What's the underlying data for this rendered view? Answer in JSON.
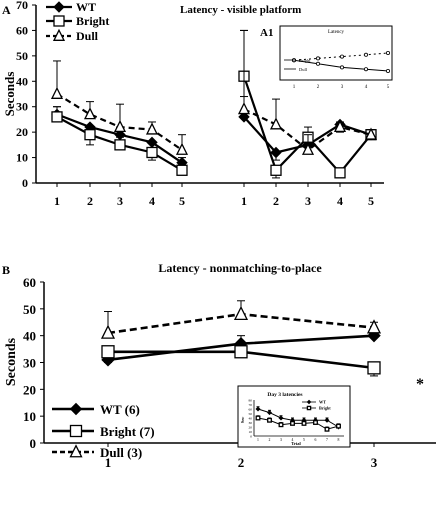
{
  "figure": {
    "panel_a_letter": "A",
    "panel_a1_letter": "A1",
    "panel_b_letter": "B",
    "asterisk": "*"
  },
  "chart_data": [
    {
      "type": "line",
      "title": "Latency - visible platform",
      "ylabel": "Seconds",
      "ylim": [
        0,
        70
      ],
      "yticks": [
        0,
        10,
        20,
        30,
        40,
        50,
        60,
        70
      ],
      "groups": [
        {
          "x": [
            "1",
            "2",
            "3",
            "4",
            "5"
          ]
        },
        {
          "x": [
            "1",
            "2",
            "3",
            "4",
            "5"
          ]
        }
      ],
      "legend": [
        "WT",
        "Bright",
        "Dull"
      ],
      "series": [
        {
          "name": "WT",
          "marker": "diamond",
          "line": "solid",
          "group1": [
            27,
            22,
            19,
            16,
            8
          ],
          "group1_err": [
            3,
            3,
            3,
            3,
            2
          ],
          "group2": [
            26,
            12,
            15,
            23,
            19
          ],
          "group2_err": [
            8,
            3,
            3,
            3,
            2
          ]
        },
        {
          "name": "Bright",
          "marker": "square",
          "line": "solid",
          "group1": [
            26,
            19,
            15,
            12,
            5
          ],
          "group1_err": [
            4,
            4,
            3,
            3,
            2
          ],
          "group2": [
            42,
            5,
            18,
            4,
            19
          ],
          "group2_err": [
            18,
            3,
            4,
            2,
            2
          ]
        },
        {
          "name": "Dull",
          "marker": "triangle",
          "line": "dashed",
          "group1": [
            35,
            27,
            22,
            21,
            13
          ],
          "group1_err": [
            13,
            5,
            9,
            3,
            6
          ],
          "group2": [
            29,
            23,
            13,
            22,
            19
          ],
          "group2_err": [
            31,
            10,
            6,
            2,
            2
          ]
        }
      ]
    },
    {
      "type": "line",
      "title": "Latency",
      "x": [
        "1",
        "2",
        "3",
        "4",
        "5"
      ],
      "series": [
        {
          "name": "Dull",
          "line": "dotted",
          "values": [
            42,
            44,
            46,
            48,
            50
          ]
        },
        {
          "name": "Bright",
          "line": "solid",
          "values": [
            42,
            38,
            34,
            32,
            30
          ]
        }
      ],
      "legend": [
        "Bright",
        "Dull"
      ]
    },
    {
      "type": "line",
      "title": "Latency - nonmatching-to-place",
      "ylabel": "Seconds",
      "ylim": [
        0,
        60
      ],
      "yticks": [
        0,
        10,
        20,
        30,
        40,
        50,
        60
      ],
      "x": [
        "1",
        "2",
        "3"
      ],
      "legend": [
        "WT (6)",
        "Bright (7)",
        "Dull (3)"
      ],
      "series": [
        {
          "name": "WT (6)",
          "marker": "diamond",
          "line": "solid",
          "values": [
            31,
            37,
            40
          ],
          "err": [
            3,
            3,
            3
          ]
        },
        {
          "name": "Bright (7)",
          "marker": "square",
          "line": "solid",
          "values": [
            34,
            34,
            28
          ],
          "err": [
            4,
            3,
            3
          ]
        },
        {
          "name": "Dull (3)",
          "marker": "triangle",
          "line": "dashed",
          "values": [
            41,
            48,
            43
          ],
          "err": [
            8,
            5,
            2
          ]
        }
      ]
    },
    {
      "type": "line",
      "title": "Day 3 latencies",
      "xlabel": "Trial",
      "ylabel": "Sec",
      "ylim": [
        0,
        80
      ],
      "yticks": [
        0,
        10,
        20,
        30,
        40,
        50,
        60,
        70,
        80
      ],
      "x": [
        "1",
        "2",
        "3",
        "4",
        "5",
        "6",
        "7",
        "8"
      ],
      "legend": [
        "WT",
        "Bright"
      ],
      "series": [
        {
          "name": "WT",
          "marker": "diamond",
          "values": [
            60,
            52,
            40,
            35,
            35,
            35,
            35,
            20
          ]
        },
        {
          "name": "Bright",
          "marker": "square",
          "values": [
            40,
            35,
            25,
            28,
            28,
            30,
            15,
            22
          ]
        }
      ]
    }
  ]
}
